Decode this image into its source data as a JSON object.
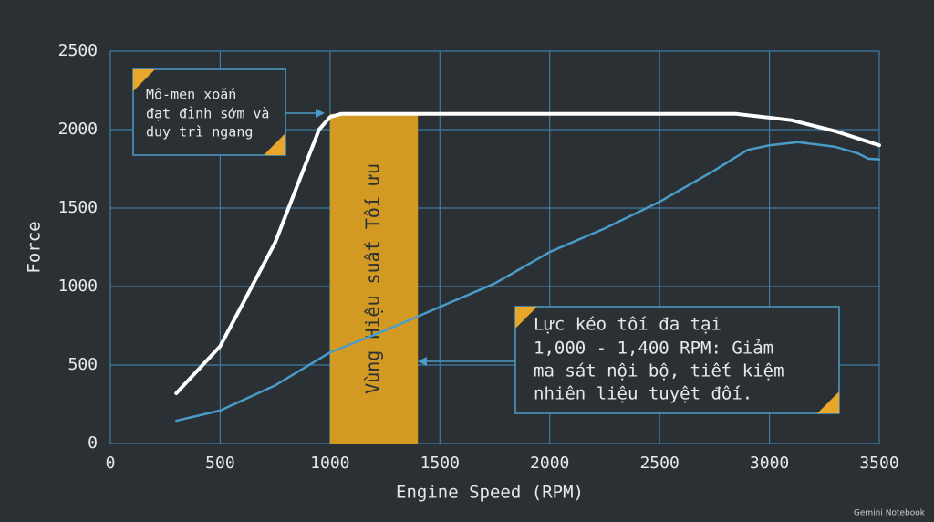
{
  "chart_data": {
    "type": "line",
    "x_label": "Engine Speed (RPM)",
    "y_label": "Force",
    "xlim": [
      0,
      3500
    ],
    "ylim": [
      0,
      2500
    ],
    "xticks": [
      0,
      500,
      1000,
      1500,
      2000,
      2500,
      3000,
      3500
    ],
    "yticks": [
      0,
      500,
      1000,
      1500,
      2000,
      2500
    ],
    "grid": true,
    "grid_color": "#3d7ca3",
    "series": [
      {
        "color": "#ffffff",
        "x": [
          300,
          500,
          750,
          950,
          1000,
          1050,
          2850,
          3100,
          3300,
          3500
        ],
        "values": [
          320,
          620,
          1280,
          2000,
          2080,
          2100,
          2100,
          2060,
          1990,
          1900
        ]
      },
      {
        "color": "#4a9cc8",
        "x": [
          300,
          500,
          750,
          1000,
          1250,
          1500,
          1750,
          2000,
          2250,
          2500,
          2750,
          2900,
          3000,
          3130,
          3300,
          3400,
          3450,
          3500
        ],
        "values": [
          145,
          210,
          370,
          580,
          720,
          870,
          1020,
          1220,
          1370,
          1540,
          1740,
          1870,
          1900,
          1920,
          1890,
          1850,
          1815,
          1810
        ]
      }
    ],
    "band": {
      "x": [
        1000,
        1400
      ],
      "label": "Vùng Hiệu suất Tối ưu",
      "color": "#d29a23"
    },
    "annotations": [
      {
        "lines": [
          "Mô-men xoắn",
          "đạt đỉnh sớm và",
          "duy trì ngang"
        ]
      },
      {
        "lines": [
          "Lực kéo tối đa tại",
          "1,000 - 1,400 RPM: Giảm",
          "ma sát nội bộ, tiết kiệm",
          "nhiên liệu tuyệt đối."
        ]
      }
    ],
    "watermark": "Gemini Notebook"
  }
}
